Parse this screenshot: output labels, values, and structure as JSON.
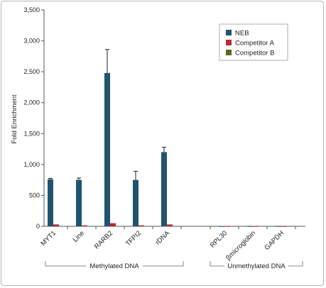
{
  "chart_data": {
    "type": "bar",
    "ylabel": "Fold Enrichment",
    "ylim": [
      0,
      3500
    ],
    "yticks": [
      "0",
      "500",
      "1,000",
      "1,500",
      "2,000",
      "2,500",
      "3,000",
      "3,500"
    ],
    "categories": [
      "MYT1",
      "Line",
      "RARB2",
      "TFPI2",
      "rDNA",
      "RPL30",
      "βmicroglobin",
      "GAPDH"
    ],
    "groups": [
      {
        "label": "Methylated DNA",
        "categories": [
          0,
          1,
          2,
          3,
          4
        ]
      },
      {
        "label": "Unmethylated DNA",
        "categories": [
          5,
          6,
          7
        ]
      }
    ],
    "series": [
      {
        "name": "NEB",
        "color": "#1f5470",
        "values": [
          760,
          750,
          2480,
          750,
          1200,
          3,
          3,
          3
        ],
        "errors": [
          15,
          30,
          380,
          140,
          80,
          0,
          0,
          0
        ]
      },
      {
        "name": "Competitor A",
        "color": "#b52a34",
        "values": [
          30,
          15,
          50,
          15,
          30,
          3,
          3,
          3
        ],
        "errors": [
          0,
          0,
          0,
          0,
          0,
          0,
          0,
          0
        ]
      },
      {
        "name": "Competitor B",
        "color": "#5b6622",
        "values": [
          0,
          0,
          0,
          0,
          0,
          0,
          0,
          0
        ],
        "errors": [
          0,
          0,
          0,
          0,
          0,
          0,
          0,
          0
        ]
      }
    ],
    "legend_position": "top-right",
    "grid": false
  }
}
